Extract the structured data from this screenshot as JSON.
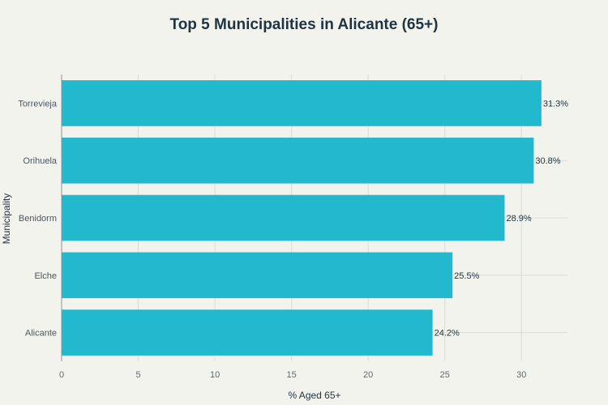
{
  "chart_data": {
    "type": "bar",
    "orientation": "horizontal",
    "title": "Top 5 Municipalities in Alicante (65+)",
    "xlabel": "% Aged 65+",
    "ylabel": "Municipality",
    "categories": [
      "Torrevieja",
      "Orihuela",
      "Benidorm",
      "Elche",
      "Alicante"
    ],
    "values": [
      31.3,
      30.8,
      28.9,
      25.5,
      24.2
    ],
    "value_labels": [
      "31.3%",
      "30.8%",
      "28.9%",
      "25.5%",
      "24.2%"
    ],
    "xlim": [
      0,
      33
    ],
    "xticks": [
      0,
      5,
      10,
      15,
      20,
      25,
      30
    ],
    "grid": true,
    "bar_color": "#22b8ce"
  }
}
